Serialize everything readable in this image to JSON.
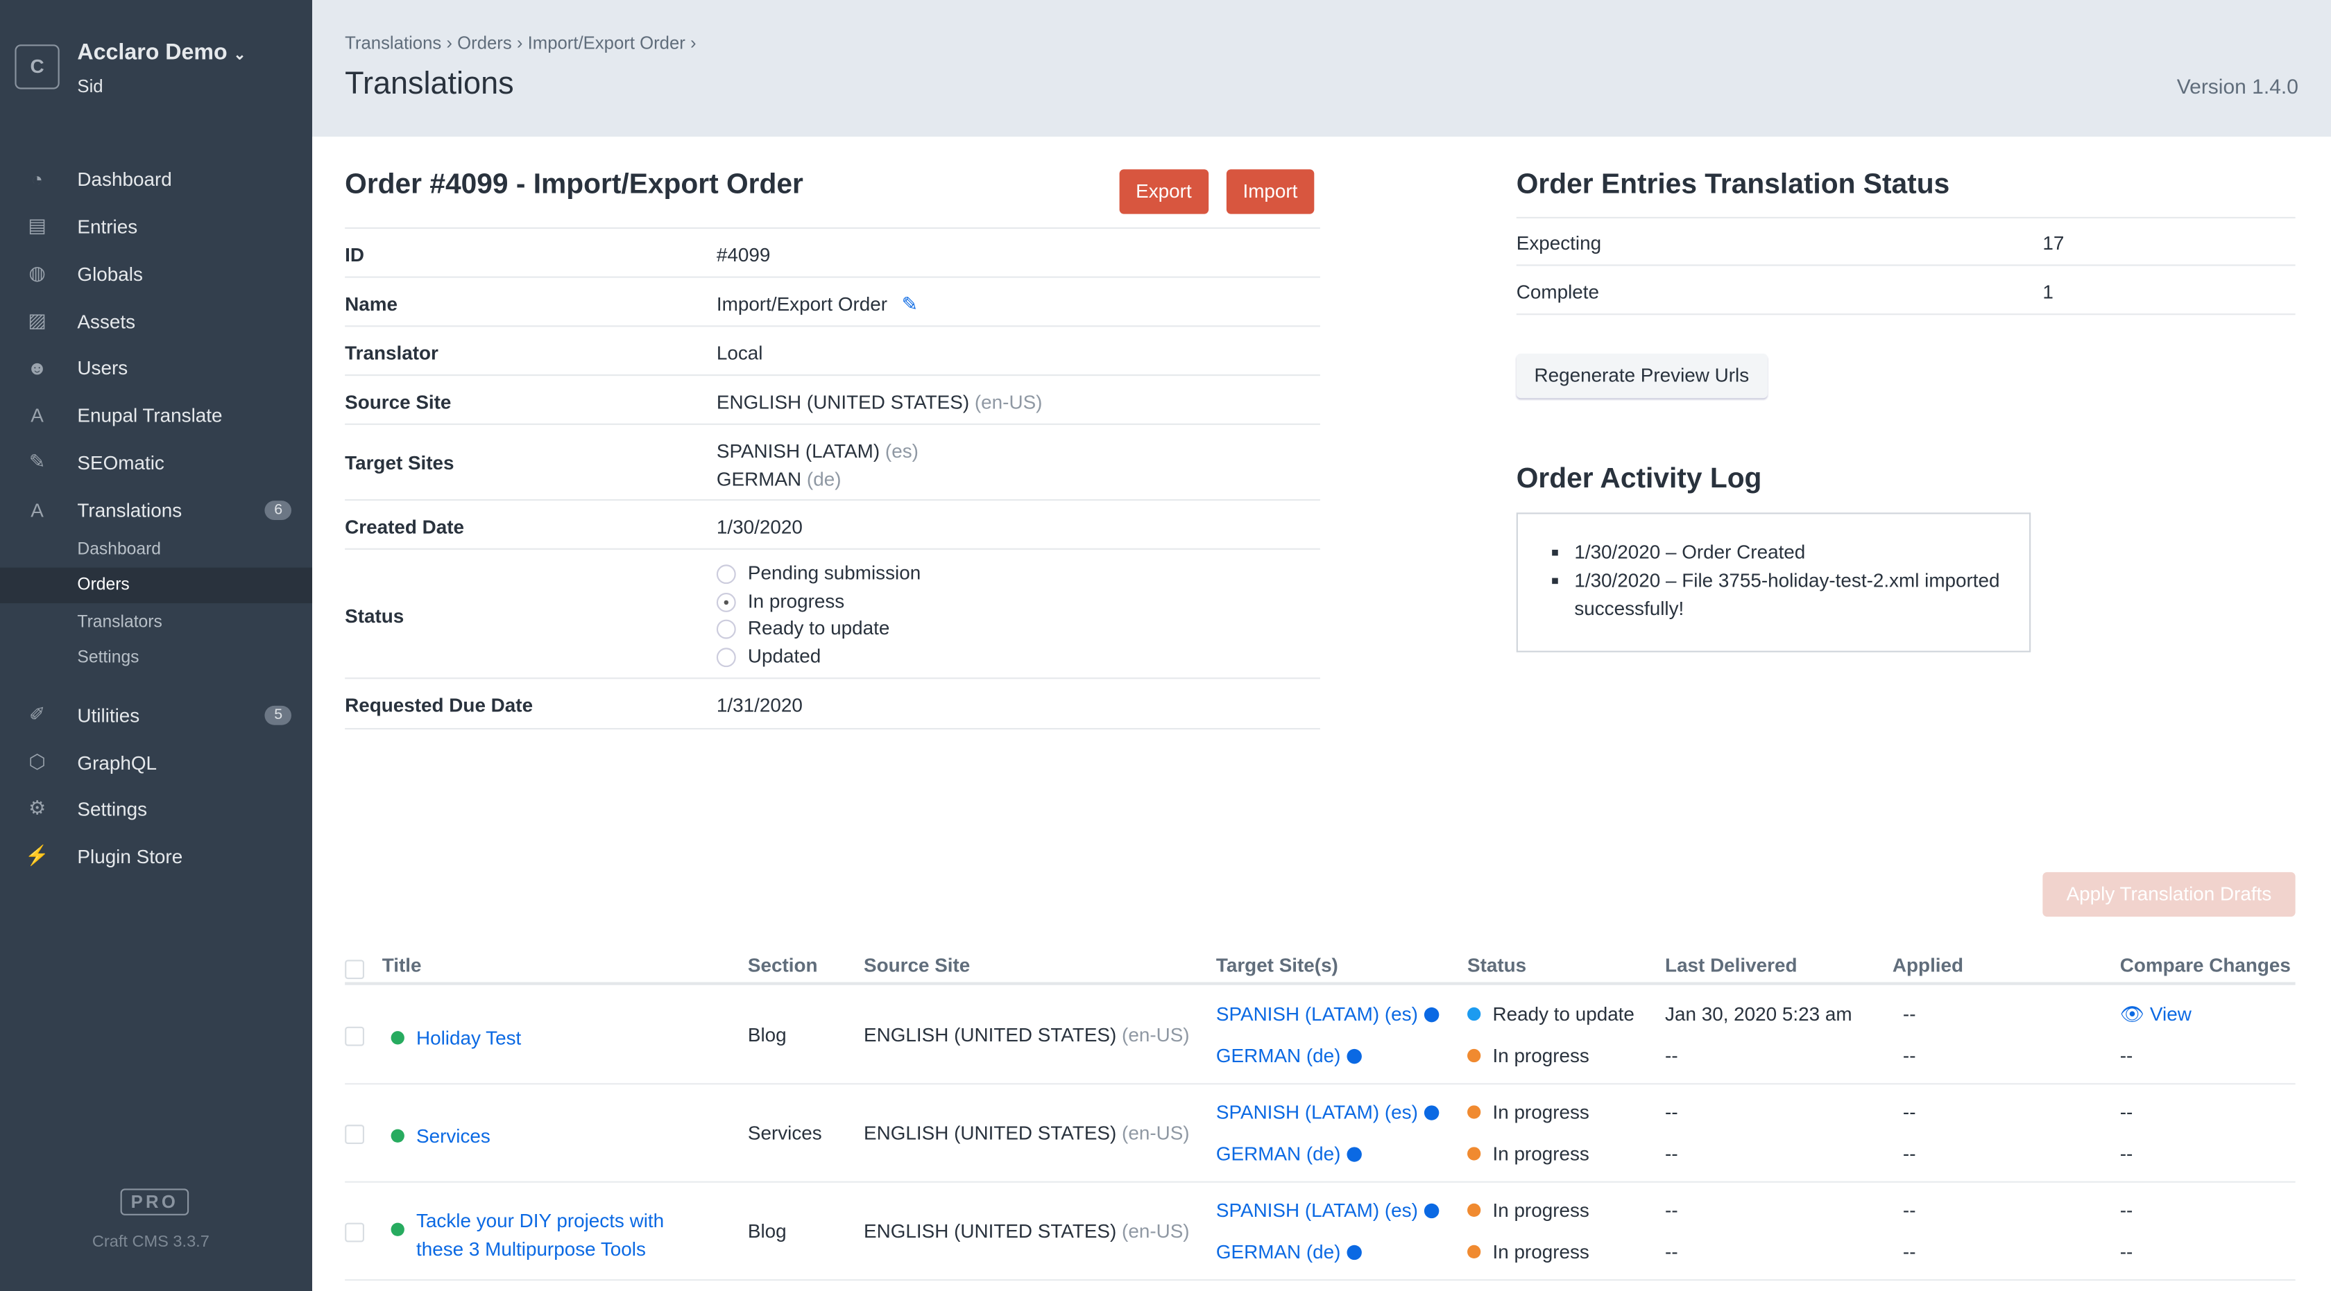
{
  "sidebar": {
    "logo_letter": "C",
    "site_name": "Acclaro Demo",
    "user": "Sid",
    "items": [
      {
        "label": "Dashboard",
        "icon": "gauge-icon"
      },
      {
        "label": "Entries",
        "icon": "newspaper-icon"
      },
      {
        "label": "Globals",
        "icon": "globe-icon"
      },
      {
        "label": "Assets",
        "icon": "image-icon"
      },
      {
        "label": "Users",
        "icon": "users-icon"
      },
      {
        "label": "Enupal Translate",
        "icon": "language-icon"
      },
      {
        "label": "SEOmatic",
        "icon": "seo-tag-icon"
      },
      {
        "label": "Translations",
        "icon": "translations-icon",
        "badge": "6"
      },
      {
        "label": "Utilities",
        "icon": "wrench-icon",
        "badge": "5"
      },
      {
        "label": "GraphQL",
        "icon": "graphql-icon"
      },
      {
        "label": "Settings",
        "icon": "gear-icon"
      },
      {
        "label": "Plugin Store",
        "icon": "plug-icon"
      }
    ],
    "subitems": [
      "Dashboard",
      "Orders",
      "Translators",
      "Settings"
    ],
    "edition": "PRO",
    "version": "Craft CMS 3.3.7"
  },
  "header": {
    "breadcrumbs": [
      "Translations",
      "Orders",
      "Import/Export Order"
    ],
    "title": "Translations",
    "version": "Version 1.4.0"
  },
  "order": {
    "title": "Order #4099 - Import/Export Order",
    "export_label": "Export",
    "import_label": "Import",
    "fields": {
      "id_label": "ID",
      "id": "#4099",
      "name_label": "Name",
      "name": "Import/Export Order",
      "translator_label": "Translator",
      "translator": "Local",
      "source_label": "Source Site",
      "source": "ENGLISH (UNITED STATES)",
      "source_code": "(en-US)",
      "targets_label": "Target Sites",
      "target1": "SPANISH (LATAM)",
      "target1_code": "(es)",
      "target2": "GERMAN",
      "target2_code": "(de)",
      "created_label": "Created Date",
      "created": "1/30/2020",
      "status_label": "Status",
      "status_options": [
        "Pending submission",
        "In progress",
        "Ready to update",
        "Updated"
      ],
      "status_selected": "In progress",
      "due_label": "Requested Due Date",
      "due": "1/31/2020"
    }
  },
  "status_panel": {
    "title": "Order Entries Translation Status",
    "expecting_label": "Expecting",
    "expecting": "17",
    "complete_label": "Complete",
    "complete": "1",
    "regenerate_label": "Regenerate Preview Urls"
  },
  "activity": {
    "title": "Order Activity Log",
    "entries": [
      "1/30/2020 – Order Created",
      "1/30/2020 – File 3755-holiday-test-2.xml imported successfully!"
    ]
  },
  "table": {
    "apply_label": "Apply Translation Drafts",
    "headers": [
      "Title",
      "Section",
      "Source Site",
      "Target Site(s)",
      "Status",
      "Last Delivered",
      "Applied",
      "Compare Changes"
    ],
    "rows": [
      {
        "title": "Holiday Test",
        "section": "Blog",
        "source": "ENGLISH (UNITED STATES)",
        "source_code": "(en-US)",
        "targets": [
          {
            "site": "SPANISH (LATAM) (es)",
            "status": "Ready to update",
            "delivered": "Jan 30, 2020 5:23 am",
            "applied": "--",
            "compare": "View"
          },
          {
            "site": "GERMAN (de)",
            "status": "In progress",
            "delivered": "--",
            "applied": "--",
            "compare": "--"
          }
        ]
      },
      {
        "title": "Services",
        "section": "Services",
        "source": "ENGLISH (UNITED STATES)",
        "source_code": "(en-US)",
        "targets": [
          {
            "site": "SPANISH (LATAM) (es)",
            "status": "In progress",
            "delivered": "--",
            "applied": "--",
            "compare": "--"
          },
          {
            "site": "GERMAN (de)",
            "status": "In progress",
            "delivered": "--",
            "applied": "--",
            "compare": "--"
          }
        ]
      },
      {
        "title": "Tackle your DIY projects with these 3 Multipurpose Tools",
        "section": "Blog",
        "source": "ENGLISH (UNITED STATES)",
        "source_code": "(en-US)",
        "targets": [
          {
            "site": "SPANISH (LATAM) (es)",
            "status": "In progress",
            "delivered": "--",
            "applied": "--",
            "compare": "--"
          },
          {
            "site": "GERMAN (de)",
            "status": "In progress",
            "delivered": "--",
            "applied": "--",
            "compare": "--"
          }
        ]
      }
    ]
  },
  "colors": {
    "sidebar": "#333f4d",
    "accent": "#d8563f",
    "link": "#0b69e3",
    "enabled": "#27ab5f",
    "ready": "#1c9bf0",
    "in_progress": "#f08a30"
  }
}
